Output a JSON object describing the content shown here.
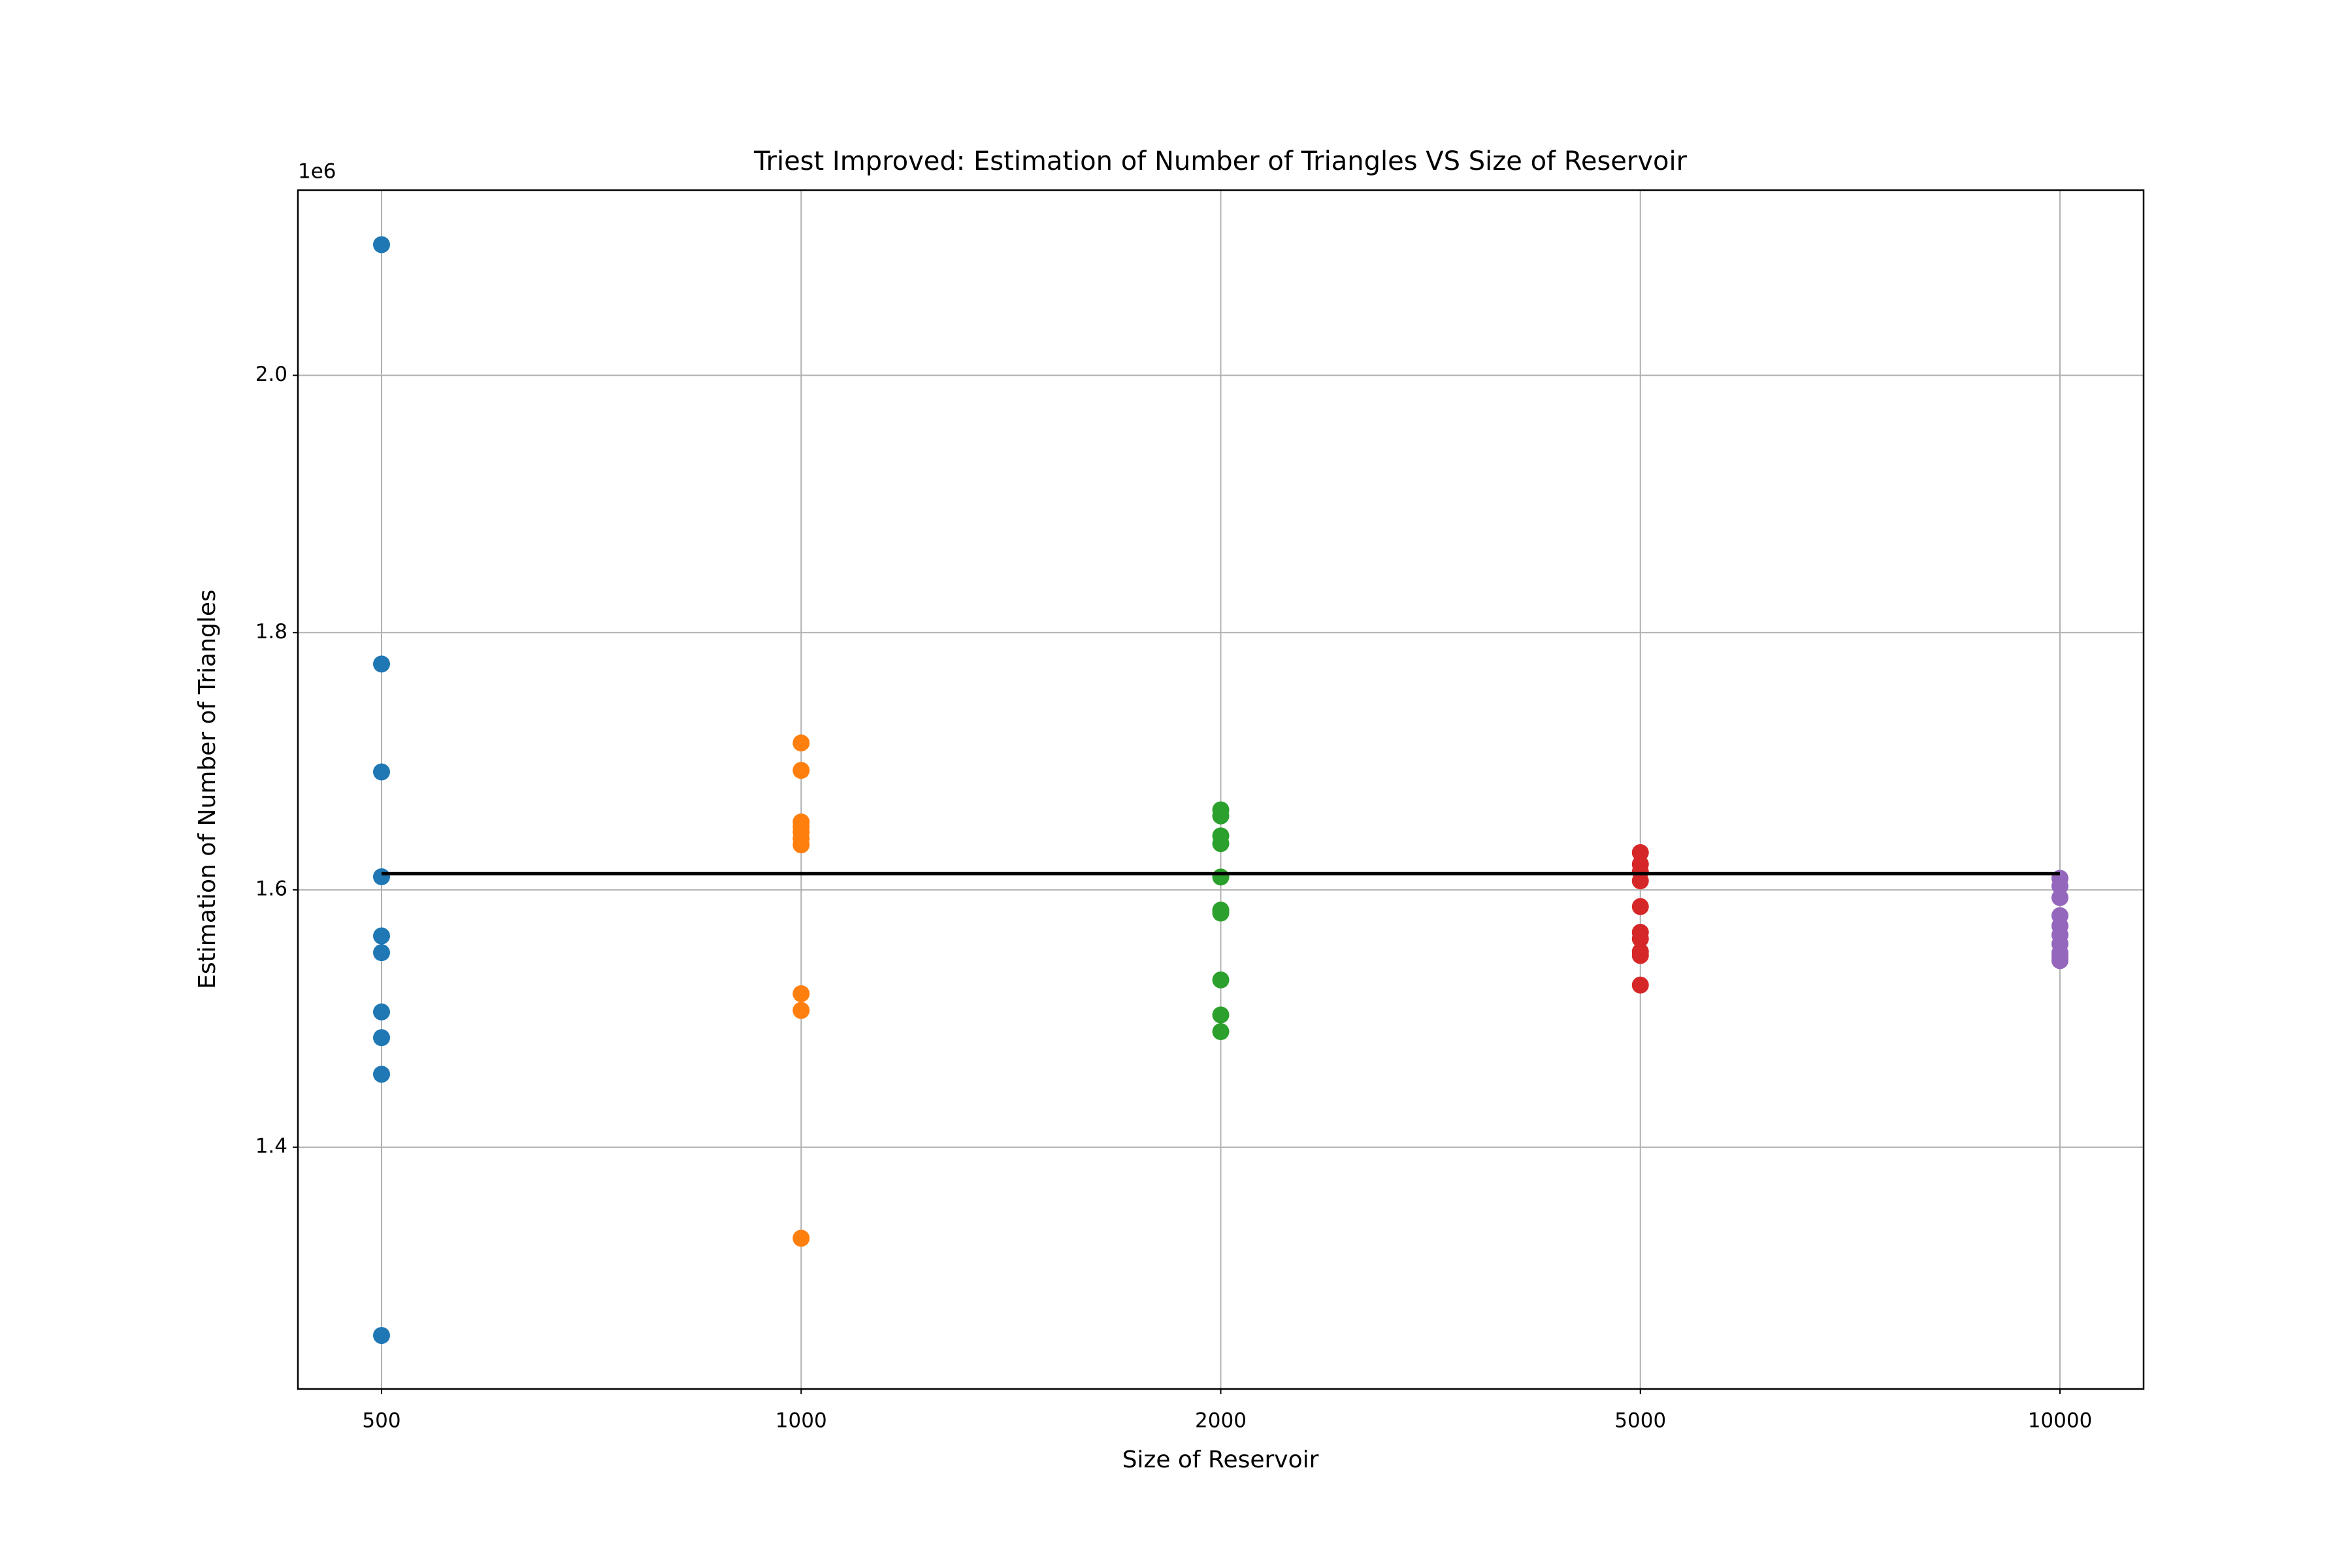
{
  "chart_data": {
    "type": "scatter",
    "title": "Triest Improved: Estimation of Number of Triangles VS Size of Reservoir",
    "x_label": "Size of Reservoir",
    "y_label": "Estimation of Number of Triangles",
    "y_offset_label": "1e6",
    "categories": [
      "500",
      "1000",
      "2000",
      "5000",
      "10000"
    ],
    "series": [
      {
        "color": "#1f77b4",
        "x": [
          "500",
          "500",
          "500",
          "500",
          "500",
          "500",
          "500",
          "500",
          "500",
          "500"
        ],
        "values": [
          2101600,
          1775600,
          1691700,
          1610200,
          1564200,
          1551200,
          1505100,
          1485100,
          1456700,
          1253600
        ]
      },
      {
        "color": "#ff7f0e",
        "x": [
          "1000",
          "1000",
          "1000",
          "1000",
          "1000",
          "1000",
          "1000",
          "1000",
          "1000",
          "1000"
        ],
        "values": [
          1714200,
          1692900,
          1652800,
          1649000,
          1645000,
          1640000,
          1635000,
          1519300,
          1506300,
          1329200
        ]
      },
      {
        "color": "#2ca02c",
        "x": [
          "2000",
          "2000",
          "2000",
          "2000",
          "2000",
          "2000",
          "2000",
          "2000",
          "2000",
          "2000"
        ],
        "values": [
          1662200,
          1657500,
          1642000,
          1636000,
          1610000,
          1584300,
          1582000,
          1530000,
          1502800,
          1489800
        ]
      },
      {
        "color": "#d62728",
        "x": [
          "5000",
          "5000",
          "5000",
          "5000",
          "5000",
          "5000",
          "5000",
          "5000",
          "5000",
          "5000"
        ],
        "values": [
          1629000,
          1620000,
          1614000,
          1607000,
          1587000,
          1567000,
          1562000,
          1552000,
          1549000,
          1526000
        ]
      },
      {
        "color": "#9467bd",
        "x": [
          "10000",
          "10000",
          "10000",
          "10000",
          "10000",
          "10000",
          "10000",
          "10000",
          "10000",
          "10000"
        ],
        "values": [
          1609000,
          1603000,
          1594000,
          1580000,
          1572000,
          1565000,
          1558000,
          1551000,
          1548000,
          1545000
        ]
      }
    ],
    "reference_line": {
      "value": 1612600,
      "color": "#000000"
    },
    "ylim": [
      1212000,
      2144000
    ],
    "yticks": [
      {
        "value": 1400000,
        "label": "1.4"
      },
      {
        "value": 1600000,
        "label": "1.6"
      },
      {
        "value": 1800000,
        "label": "1.8"
      },
      {
        "value": 2000000,
        "label": "2.0"
      }
    ],
    "grid": true
  }
}
